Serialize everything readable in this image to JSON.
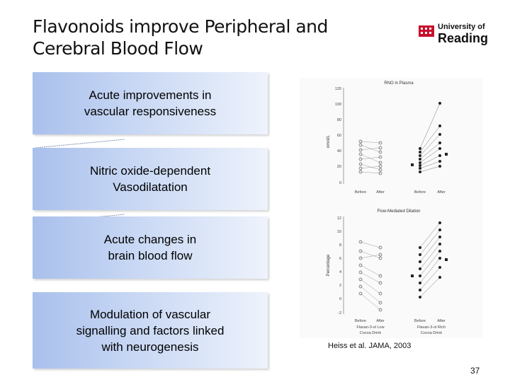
{
  "slide": {
    "title_line1": "Flavonoids improve Peripheral and",
    "title_line2": "Cerebral Blood Flow",
    "logo_line1": "University of",
    "logo_line2": "Reading",
    "boxes": [
      {
        "line1": "Acute improvements in",
        "line2": "vascular responsiveness",
        "line3": ""
      },
      {
        "line1": "Nitric oxide-dependent",
        "line2": "Vasodilatation",
        "line3": ""
      },
      {
        "line1": "Acute changes in",
        "line2": "brain blood flow",
        "line3": ""
      },
      {
        "line1": "Modulation of vascular",
        "line2": "signalling  and factors linked",
        "line3": "with neurogenesis"
      }
    ],
    "caption": "Heiss et al. JAMA, 2003",
    "page_number": "37"
  },
  "figure": {
    "top_plot": {
      "title": "RNO in Plasma",
      "ylabel": "nmol/L",
      "yticks": [
        "120",
        "100",
        "80",
        "60",
        "40",
        "20",
        "0"
      ],
      "xticks": [
        "Before",
        "After",
        "Before",
        "After"
      ]
    },
    "bottom_plot": {
      "title": "Flow-Mediated Dilation",
      "ylabel": "Percentage",
      "yticks": [
        "12",
        "10",
        "8",
        "6",
        "4",
        "2",
        "0",
        "-2"
      ],
      "xticks": [
        "Before",
        "After",
        "Before",
        "After"
      ],
      "group1_line1": "Flavan-3-ol Low",
      "group1_line2": "Cocoa Drink",
      "group2_line1": "Flavan-3-ol Rich",
      "group2_line2": "Cocoa Drink"
    }
  }
}
